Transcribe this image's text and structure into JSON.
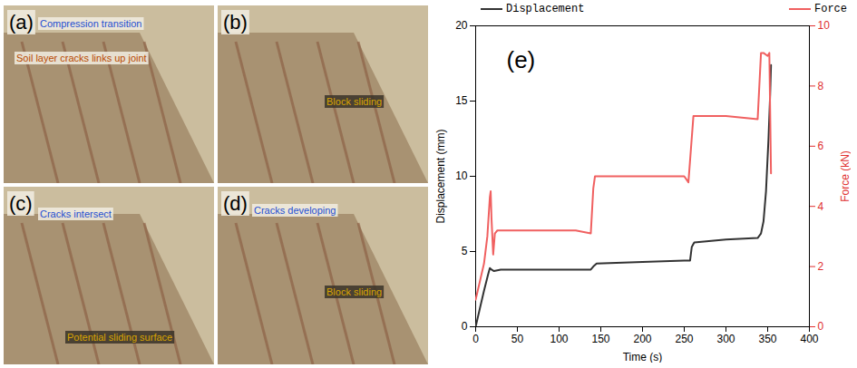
{
  "photo_panels": [
    {
      "label": "(a)",
      "annotations": [
        "Compression transition",
        "Soil layer cracks links up joint"
      ]
    },
    {
      "label": "(b)",
      "annotations": [
        "Block sliding"
      ]
    },
    {
      "label": "(c)",
      "annotations": [
        "Cracks intersect",
        "Potential sliding surface"
      ]
    },
    {
      "label": "(d)",
      "annotations": [
        "Cracks developing",
        "Block sliding"
      ]
    }
  ],
  "chart_data": {
    "type": "line",
    "panel_label": "(e)",
    "x_label": "Time (s)",
    "y_label": "Displacement (mm)",
    "y2_label": "Force (kN)",
    "xlim": [
      0,
      400
    ],
    "xticks": [
      0,
      50,
      100,
      150,
      200,
      250,
      300,
      350,
      400
    ],
    "ylim": [
      0,
      20
    ],
    "yticks": [
      0,
      5,
      10,
      15,
      20
    ],
    "y2lim": [
      0,
      10
    ],
    "y2ticks": [
      0,
      2,
      4,
      6,
      8,
      10
    ],
    "legend": "top",
    "series": [
      {
        "name": "Displacement",
        "color": "#333333",
        "x": [
          0,
          5,
          10,
          15,
          17,
          19,
          22,
          30,
          60,
          100,
          138,
          141,
          145,
          200,
          250,
          257,
          259,
          262,
          300,
          338,
          342,
          345,
          348,
          351,
          353,
          354
        ],
        "values": [
          0,
          1.2,
          2.4,
          3.5,
          3.9,
          3.8,
          3.7,
          3.8,
          3.8,
          3.8,
          3.8,
          4.0,
          4.2,
          4.3,
          4.4,
          4.4,
          5.3,
          5.6,
          5.8,
          5.9,
          6.2,
          7.0,
          9.0,
          12.5,
          15.5,
          17.4
        ]
      },
      {
        "name": "Force",
        "color": "#f06060",
        "axis": "y2",
        "x": [
          0,
          5,
          10,
          14,
          17,
          18,
          19,
          21,
          23,
          26,
          40,
          80,
          120,
          138,
          141,
          143,
          150,
          200,
          250,
          255,
          258,
          261,
          265,
          300,
          338,
          340,
          342,
          345,
          350,
          352,
          354
        ],
        "values": [
          0.9,
          1.5,
          2.1,
          3.0,
          4.3,
          4.5,
          3.6,
          2.4,
          3.1,
          3.2,
          3.2,
          3.2,
          3.2,
          3.1,
          4.6,
          5.0,
          5.0,
          5.0,
          5.0,
          4.8,
          5.9,
          7.0,
          7.0,
          7.0,
          6.9,
          8.0,
          9.1,
          9.1,
          9.0,
          9.1,
          5.1
        ]
      }
    ]
  }
}
